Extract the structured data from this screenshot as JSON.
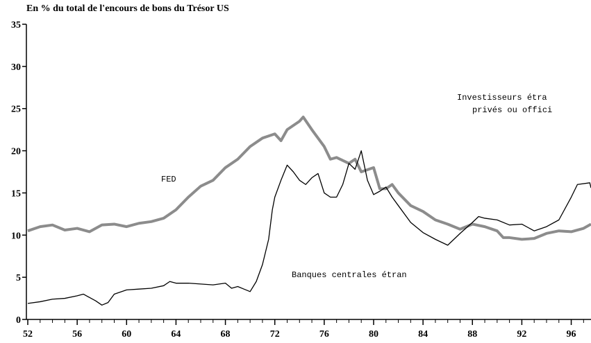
{
  "chart_data": {
    "type": "line",
    "title": "En % du total de l'encours de bons du Trésor US",
    "xlim": [
      52,
      97.6
    ],
    "ylim": [
      0,
      35
    ],
    "xticks": [
      52,
      56,
      60,
      64,
      68,
      72,
      76,
      80,
      84,
      88,
      92,
      96
    ],
    "yticks": [
      0,
      5,
      10,
      15,
      20,
      25,
      30,
      35
    ],
    "annotations": [
      "FED",
      "Banques centrales étran",
      "Investisseurs étra",
      "privés ou offici"
    ],
    "series": [
      {
        "name": "FED",
        "color": "#8c8c8c",
        "width": 4,
        "x": [
          52,
          53,
          54,
          55,
          56,
          57,
          58,
          59,
          60,
          61,
          62,
          63,
          64,
          65,
          66,
          67,
          68,
          69,
          70,
          71,
          72,
          72.5,
          73,
          74,
          74.3,
          75,
          76,
          76.5,
          77,
          78,
          78.5,
          79,
          80,
          80.5,
          81,
          81.5,
          82,
          83,
          84,
          85,
          86,
          87,
          88,
          89,
          90,
          90.5,
          91,
          92,
          93,
          94,
          95,
          96,
          97,
          97.6
        ],
        "values": [
          10.5,
          11,
          11.2,
          10.6,
          10.8,
          10.4,
          11.2,
          11.3,
          11,
          11.4,
          11.6,
          12,
          13,
          14.5,
          15.8,
          16.5,
          18,
          19,
          20.5,
          21.5,
          22,
          21.2,
          22.5,
          23.5,
          24,
          22.5,
          20.5,
          19,
          19.2,
          18.5,
          19,
          17.5,
          18,
          15.5,
          15.5,
          16,
          15,
          13.5,
          12.8,
          11.8,
          11.3,
          10.7,
          11.3,
          11,
          10.5,
          9.7,
          9.7,
          9.5,
          9.6,
          10.2,
          10.5,
          10.4,
          10.8,
          11.3
        ]
      },
      {
        "name": "Banques centrales étran",
        "color": "#000000",
        "width": 1.3,
        "x": [
          52,
          53,
          54,
          55,
          56,
          56.5,
          57,
          57.5,
          58,
          58.5,
          59,
          60,
          61,
          62,
          63,
          63.5,
          64,
          65,
          66,
          67,
          68,
          68.5,
          69,
          69.5,
          70,
          70.5,
          71,
          71.5,
          71.8,
          72,
          72.5,
          73,
          73.5,
          74,
          74.5,
          75,
          75.5,
          76,
          76.5,
          77,
          77.5,
          78,
          78.5,
          79,
          79.5,
          80,
          80.5,
          81,
          81.5,
          82,
          83,
          84,
          85,
          86,
          86.5,
          87,
          88,
          88.5,
          89,
          90,
          91,
          92,
          93,
          94,
          95,
          96,
          96.5,
          97.5,
          97.6
        ],
        "values": [
          1.9,
          2.1,
          2.4,
          2.5,
          2.8,
          3,
          2.6,
          2.2,
          1.7,
          2,
          3,
          3.5,
          3.6,
          3.7,
          4,
          4.5,
          4.3,
          4.3,
          4.2,
          4.1,
          4.3,
          3.7,
          3.9,
          3.6,
          3.3,
          4.5,
          6.5,
          9.5,
          13,
          14.5,
          16.5,
          18.3,
          17.5,
          16.5,
          16,
          16.8,
          17.3,
          15,
          14.5,
          14.5,
          16,
          18.5,
          17.8,
          20,
          16.5,
          14.8,
          15.2,
          15.7,
          14.5,
          13.5,
          11.5,
          10.3,
          9.5,
          8.8,
          9.5,
          10.2,
          11.5,
          12.2,
          12,
          11.8,
          11.2,
          11.3,
          10.5,
          11,
          11.8,
          14.5,
          16,
          16.2,
          15.6
        ]
      }
    ]
  }
}
